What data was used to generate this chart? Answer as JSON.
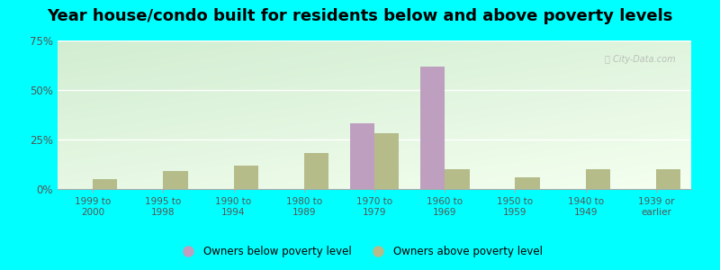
{
  "title": "Year house/condo built for residents below and above poverty levels",
  "categories": [
    "1999 to\n2000",
    "1995 to\n1998",
    "1990 to\n1994",
    "1980 to\n1989",
    "1970 to\n1979",
    "1960 to\n1969",
    "1950 to\n1959",
    "1940 to\n1949",
    "1939 or\nearlier"
  ],
  "below_poverty": [
    0,
    0,
    0,
    0,
    33,
    62,
    0,
    0,
    0
  ],
  "above_poverty": [
    5,
    9,
    12,
    18,
    28,
    10,
    6,
    10,
    10
  ],
  "below_color": "#bf9fbf",
  "above_color": "#b5bc8a",
  "ylim": [
    0,
    75
  ],
  "yticks": [
    0,
    25,
    50,
    75
  ],
  "ytick_labels": [
    "0%",
    "25%",
    "50%",
    "75%"
  ],
  "outer_background": "#00ffff",
  "title_fontsize": 13,
  "bar_width": 0.35,
  "legend_below_label": "Owners below poverty level",
  "legend_above_label": "Owners above poverty level",
  "watermark": "City-Data.com"
}
